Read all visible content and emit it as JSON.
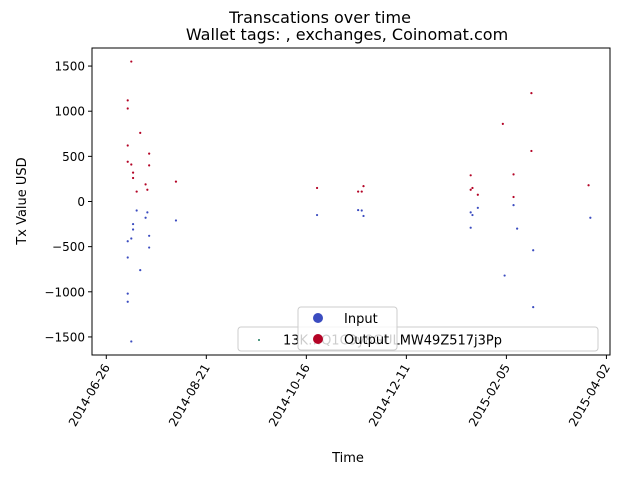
{
  "chart_data": {
    "type": "scatter",
    "title": "Transcations over time",
    "subtitle": "Wallet tags: , exchanges, Coinomat.com",
    "xlabel": "Time",
    "ylabel": "Tx Value USD",
    "xlim": [
      "2014-06-18",
      "2015-04-04"
    ],
    "ylim": [
      -1700,
      1700
    ],
    "x_ticks": [
      "2014-06-26",
      "2014-08-21",
      "2014-10-16",
      "2014-12-11",
      "2015-02-05",
      "2015-04-02"
    ],
    "y_ticks": [
      -1500,
      -1000,
      -500,
      0,
      500,
      1000,
      1500
    ],
    "grid": false,
    "legends": {
      "address": {
        "label": "13K…Q1C3y8GULMW49Z517j3Pp",
        "color": "#1a7a5e"
      },
      "types": [
        {
          "label": "Input",
          "color": "#3b4cc0"
        },
        {
          "label": "Output",
          "color": "#b40426"
        }
      ]
    },
    "series": [
      {
        "name": "Input",
        "color": "#3b4cc0",
        "points": [
          {
            "x": "2014-07-08",
            "y": -620
          },
          {
            "x": "2014-07-08",
            "y": -440
          },
          {
            "x": "2014-07-08",
            "y": -1020
          },
          {
            "x": "2014-07-08",
            "y": -1110
          },
          {
            "x": "2014-07-10",
            "y": -1550
          },
          {
            "x": "2014-07-10",
            "y": -410
          },
          {
            "x": "2014-07-11",
            "y": -250
          },
          {
            "x": "2014-07-11",
            "y": -310
          },
          {
            "x": "2014-07-13",
            "y": -100
          },
          {
            "x": "2014-07-15",
            "y": -760
          },
          {
            "x": "2014-07-18",
            "y": -180
          },
          {
            "x": "2014-07-19",
            "y": -120
          },
          {
            "x": "2014-07-20",
            "y": -510
          },
          {
            "x": "2014-07-20",
            "y": -380
          },
          {
            "x": "2014-08-04",
            "y": -210
          },
          {
            "x": "2014-10-22",
            "y": -150
          },
          {
            "x": "2014-11-14",
            "y": -95
          },
          {
            "x": "2014-11-16",
            "y": -100
          },
          {
            "x": "2014-11-17",
            "y": -160
          },
          {
            "x": "2015-01-16",
            "y": -120
          },
          {
            "x": "2015-01-16",
            "y": -290
          },
          {
            "x": "2015-01-17",
            "y": -150
          },
          {
            "x": "2015-01-20",
            "y": -70
          },
          {
            "x": "2015-02-04",
            "y": -820
          },
          {
            "x": "2015-02-09",
            "y": -40
          },
          {
            "x": "2015-02-11",
            "y": -300
          },
          {
            "x": "2015-02-20",
            "y": -540
          },
          {
            "x": "2015-02-20",
            "y": -1170
          },
          {
            "x": "2015-03-24",
            "y": -180
          }
        ]
      },
      {
        "name": "Output",
        "color": "#b40426",
        "points": [
          {
            "x": "2014-07-08",
            "y": 620
          },
          {
            "x": "2014-07-08",
            "y": 440
          },
          {
            "x": "2014-07-08",
            "y": 1030
          },
          {
            "x": "2014-07-08",
            "y": 1120
          },
          {
            "x": "2014-07-10",
            "y": 1550
          },
          {
            "x": "2014-07-10",
            "y": 410
          },
          {
            "x": "2014-07-11",
            "y": 260
          },
          {
            "x": "2014-07-11",
            "y": 320
          },
          {
            "x": "2014-07-13",
            "y": 110
          },
          {
            "x": "2014-07-15",
            "y": 760
          },
          {
            "x": "2014-07-18",
            "y": 190
          },
          {
            "x": "2014-07-19",
            "y": 130
          },
          {
            "x": "2014-07-20",
            "y": 530
          },
          {
            "x": "2014-07-20",
            "y": 400
          },
          {
            "x": "2014-08-04",
            "y": 220
          },
          {
            "x": "2014-10-22",
            "y": 150
          },
          {
            "x": "2014-11-14",
            "y": 110
          },
          {
            "x": "2014-11-16",
            "y": 110
          },
          {
            "x": "2014-11-17",
            "y": 170
          },
          {
            "x": "2015-01-16",
            "y": 130
          },
          {
            "x": "2015-01-16",
            "y": 290
          },
          {
            "x": "2015-01-17",
            "y": 150
          },
          {
            "x": "2015-01-20",
            "y": 75
          },
          {
            "x": "2015-02-03",
            "y": 860
          },
          {
            "x": "2015-02-09",
            "y": 50
          },
          {
            "x": "2015-02-09",
            "y": 300
          },
          {
            "x": "2015-02-19",
            "y": 1200
          },
          {
            "x": "2015-02-19",
            "y": 560
          },
          {
            "x": "2015-03-23",
            "y": 180
          }
        ]
      }
    ]
  }
}
